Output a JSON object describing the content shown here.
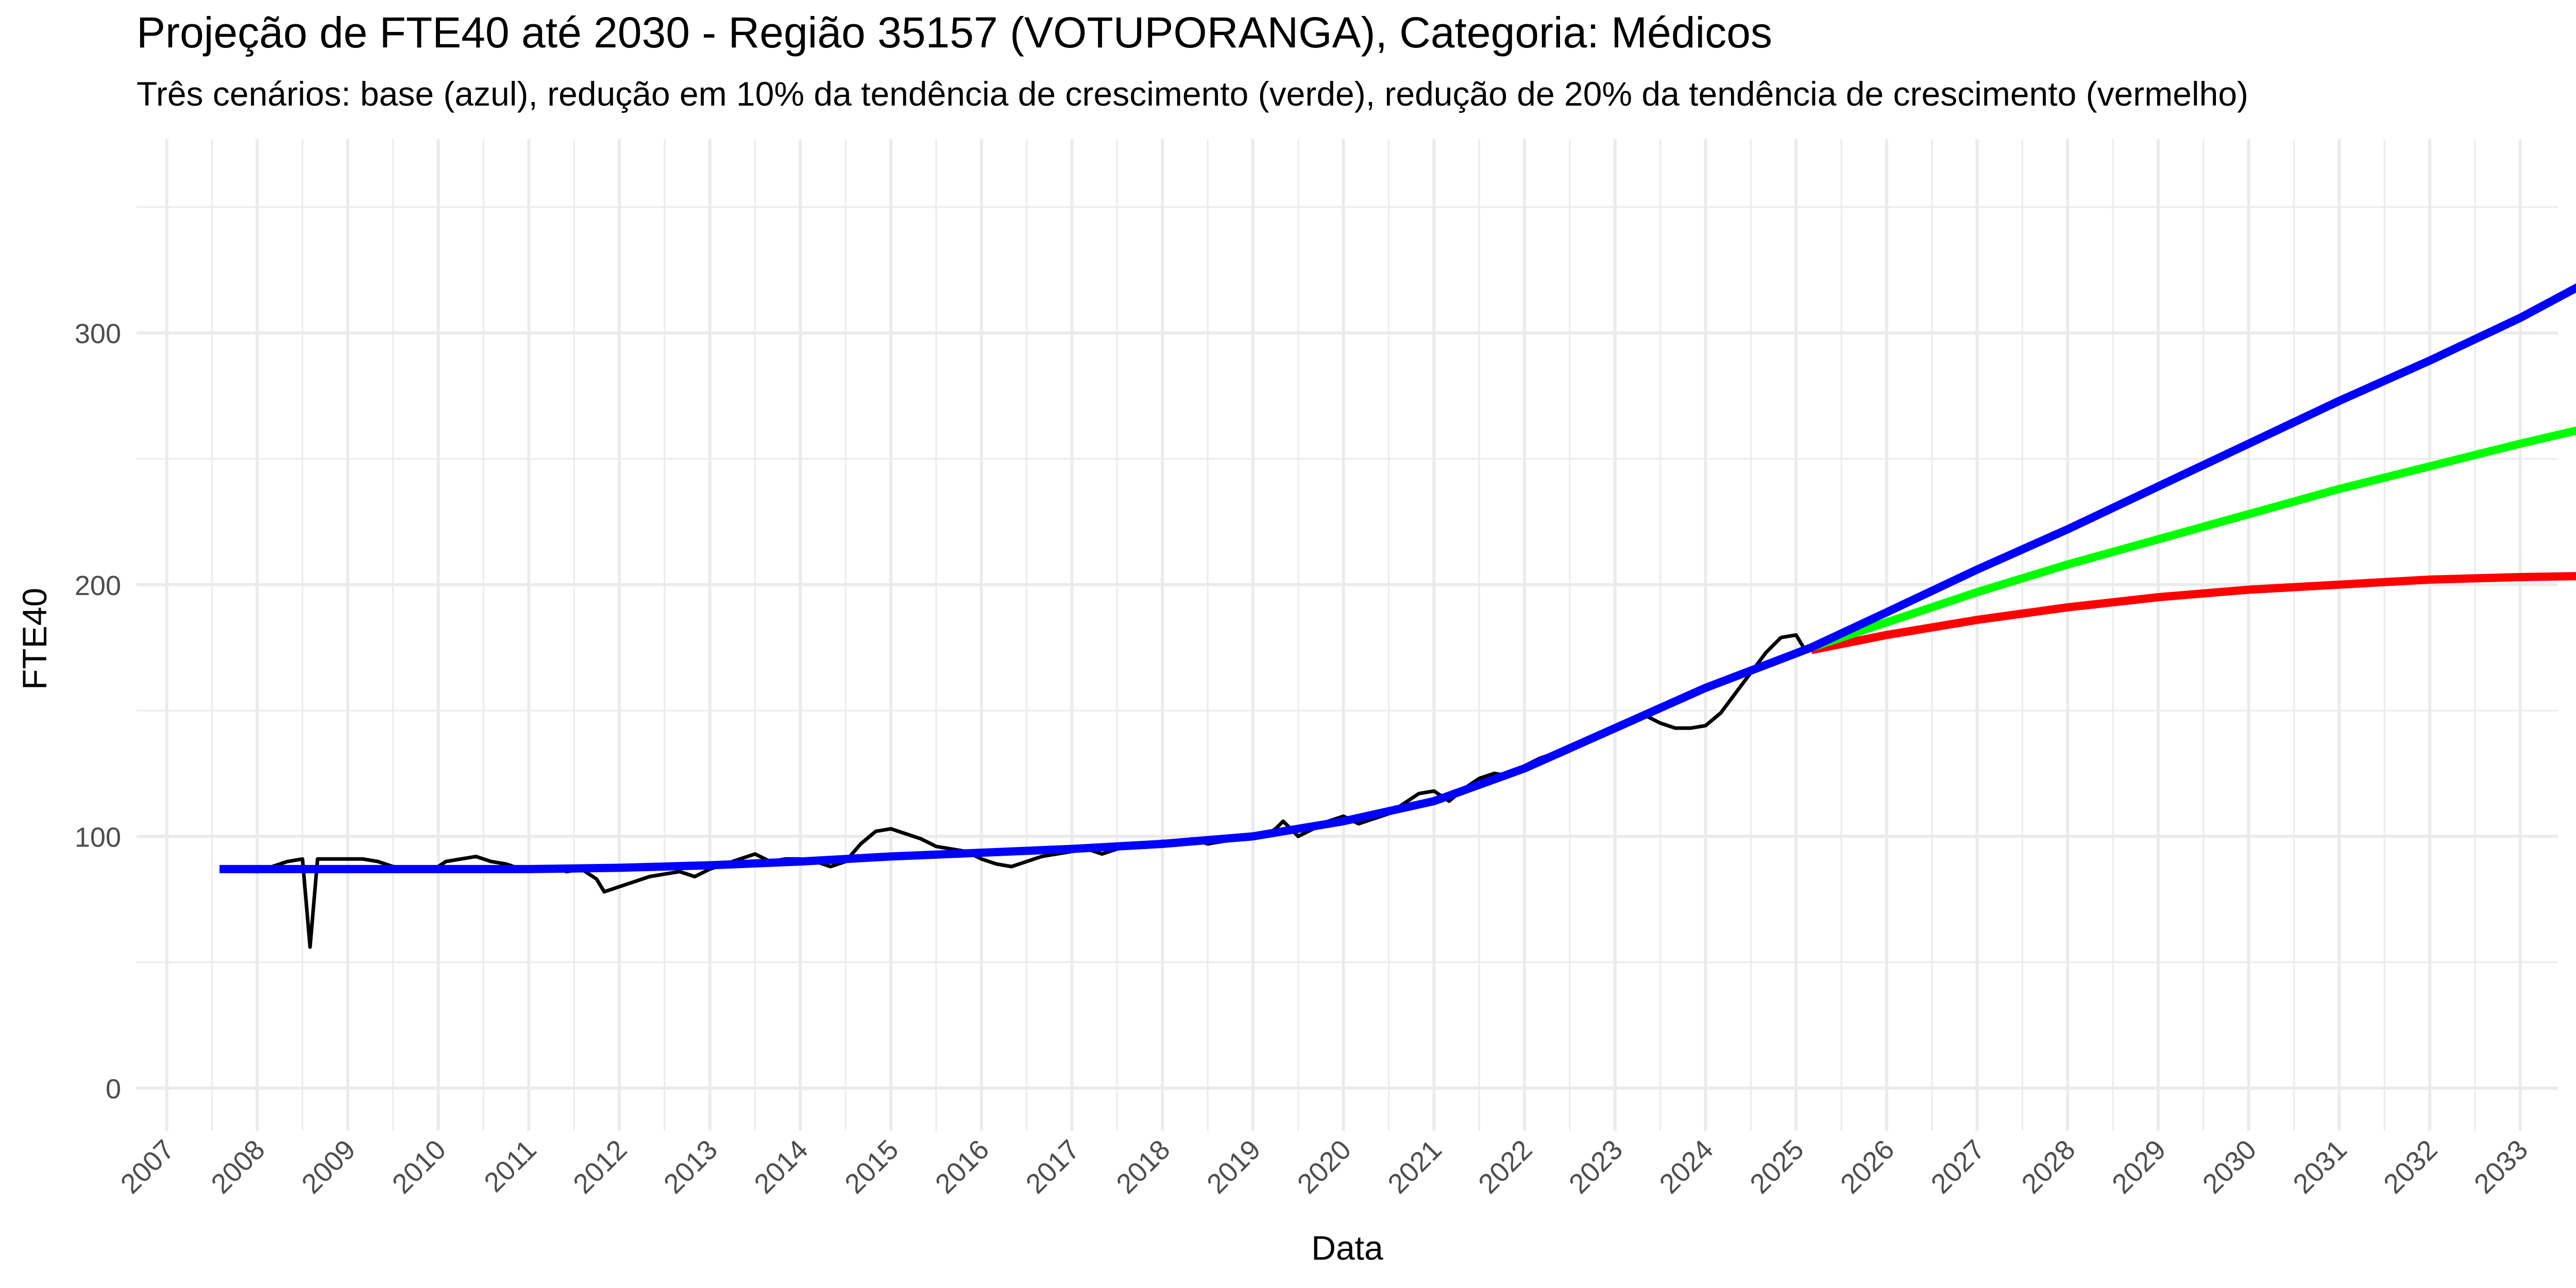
{
  "chart_data": {
    "type": "line",
    "title": "Projeção de FTE40 até 2030 - Região 35157 (VOTUPORANGA), Categoria: Médicos",
    "subtitle": "Três cenários: base (azul), redução em 10% da tendência de crescimento (verde), redução de 20% da tendência de crescimento (vermelho)",
    "xlabel": "Data",
    "ylabel": "FTE40",
    "x_ticks": [
      "2007",
      "2008",
      "2009",
      "2010",
      "2011",
      "2012",
      "2013",
      "2014",
      "2015",
      "2016",
      "2017",
      "2018",
      "2019",
      "2020",
      "2021",
      "2022",
      "2023",
      "2024",
      "2025",
      "2026",
      "2027",
      "2028",
      "2029",
      "2030",
      "2031",
      "2032",
      "2033"
    ],
    "y_ticks": [
      "0",
      "100",
      "200",
      "300"
    ],
    "xlim": [
      "2006-09",
      "2033-06"
    ],
    "ylim": [
      -17,
      377
    ],
    "grid": true,
    "legend": "none",
    "colors": {
      "observed": "#000000",
      "base": "#0000ff",
      "reducao10": "#00ff00",
      "reducao20": "#ff0000",
      "grid": "#ebebeb",
      "text": "#4d4d4d"
    },
    "series": [
      {
        "key": "observed",
        "points": [
          [
            "2007-08",
            87
          ],
          [
            "2008-01",
            86
          ],
          [
            "2008-03",
            88
          ],
          [
            "2008-05",
            90
          ],
          [
            "2008-07",
            91
          ],
          [
            "2008-08",
            56
          ],
          [
            "2008-09",
            91
          ],
          [
            "2008-11",
            91
          ],
          [
            "2009-01",
            91
          ],
          [
            "2009-03",
            91
          ],
          [
            "2009-05",
            90
          ],
          [
            "2009-07",
            88
          ],
          [
            "2009-09",
            87
          ],
          [
            "2009-11",
            87
          ],
          [
            "2010-01",
            88
          ],
          [
            "2010-02",
            90
          ],
          [
            "2010-04",
            91
          ],
          [
            "2010-06",
            92
          ],
          [
            "2010-08",
            90
          ],
          [
            "2010-10",
            89
          ],
          [
            "2010-12",
            87
          ],
          [
            "2011-02",
            87
          ],
          [
            "2011-04",
            88
          ],
          [
            "2011-06",
            86
          ],
          [
            "2011-08",
            87
          ],
          [
            "2011-10",
            83
          ],
          [
            "2011-11",
            78
          ],
          [
            "2012-01",
            80
          ],
          [
            "2012-03",
            82
          ],
          [
            "2012-05",
            84
          ],
          [
            "2012-07",
            85
          ],
          [
            "2012-09",
            86
          ],
          [
            "2012-11",
            84
          ],
          [
            "2013-01",
            87
          ],
          [
            "2013-03",
            89
          ],
          [
            "2013-05",
            91
          ],
          [
            "2013-07",
            93
          ],
          [
            "2013-09",
            90
          ],
          [
            "2013-11",
            91
          ],
          [
            "2014-01",
            91
          ],
          [
            "2014-03",
            90
          ],
          [
            "2014-05",
            88
          ],
          [
            "2014-07",
            90
          ],
          [
            "2014-09",
            97
          ],
          [
            "2014-11",
            102
          ],
          [
            "2015-01",
            103
          ],
          [
            "2015-03",
            101
          ],
          [
            "2015-05",
            99
          ],
          [
            "2015-07",
            96
          ],
          [
            "2015-09",
            95
          ],
          [
            "2015-11",
            94
          ],
          [
            "2016-01",
            91
          ],
          [
            "2016-03",
            89
          ],
          [
            "2016-05",
            88
          ],
          [
            "2016-07",
            90
          ],
          [
            "2016-09",
            92
          ],
          [
            "2016-11",
            93
          ],
          [
            "2017-01",
            94
          ],
          [
            "2017-03",
            95
          ],
          [
            "2017-05",
            93
          ],
          [
            "2017-07",
            95
          ],
          [
            "2017-09",
            96
          ],
          [
            "2017-11",
            97
          ],
          [
            "2018-01",
            98
          ],
          [
            "2018-03",
            98
          ],
          [
            "2018-05",
            99
          ],
          [
            "2018-07",
            97
          ],
          [
            "2018-09",
            98
          ],
          [
            "2018-11",
            99
          ],
          [
            "2019-01",
            100
          ],
          [
            "2019-03",
            101
          ],
          [
            "2019-04",
            103
          ],
          [
            "2019-05",
            106
          ],
          [
            "2019-07",
            100
          ],
          [
            "2019-09",
            103
          ],
          [
            "2019-11",
            106
          ],
          [
            "2020-01",
            108
          ],
          [
            "2020-03",
            105
          ],
          [
            "2020-05",
            107
          ],
          [
            "2020-07",
            109
          ],
          [
            "2020-09",
            113
          ],
          [
            "2020-11",
            117
          ],
          [
            "2021-01",
            118
          ],
          [
            "2021-03",
            114
          ],
          [
            "2021-05",
            119
          ],
          [
            "2021-07",
            123
          ],
          [
            "2021-09",
            125
          ],
          [
            "2021-11",
            124
          ],
          [
            "2022-01",
            128
          ],
          [
            "2022-03",
            131
          ],
          [
            "2022-05",
            133
          ],
          [
            "2022-07",
            135
          ],
          [
            "2022-09",
            138
          ],
          [
            "2022-11",
            141
          ],
          [
            "2023-01",
            143
          ],
          [
            "2023-03",
            146
          ],
          [
            "2023-05",
            148
          ],
          [
            "2023-07",
            145
          ],
          [
            "2023-09",
            143
          ],
          [
            "2023-11",
            143
          ],
          [
            "2024-01",
            144
          ],
          [
            "2024-03",
            149
          ],
          [
            "2024-05",
            157
          ],
          [
            "2024-07",
            165
          ],
          [
            "2024-09",
            173
          ],
          [
            "2024-11",
            179
          ],
          [
            "2025-01",
            180
          ],
          [
            "2025-02",
            175
          ],
          [
            "2025-03",
            174
          ]
        ]
      },
      {
        "key": "base",
        "points": [
          [
            "2007-08",
            87
          ],
          [
            "2009-01",
            87
          ],
          [
            "2011-01",
            87
          ],
          [
            "2012-01",
            87.5
          ],
          [
            "2013-01",
            88.5
          ],
          [
            "2014-01",
            90
          ],
          [
            "2015-01",
            92
          ],
          [
            "2016-01",
            93.5
          ],
          [
            "2017-01",
            95
          ],
          [
            "2018-01",
            97
          ],
          [
            "2019-01",
            100
          ],
          [
            "2020-01",
            106
          ],
          [
            "2021-01",
            114
          ],
          [
            "2022-01",
            127
          ],
          [
            "2023-01",
            143
          ],
          [
            "2024-01",
            159
          ],
          [
            "2025-03",
            175
          ],
          [
            "2026-01",
            189
          ],
          [
            "2027-01",
            206
          ],
          [
            "2028-01",
            222
          ],
          [
            "2029-01",
            239
          ],
          [
            "2030-01",
            256
          ],
          [
            "2031-01",
            273
          ],
          [
            "2032-01",
            289
          ],
          [
            "2033-01",
            306
          ],
          [
            "2033-11",
            322
          ]
        ]
      },
      {
        "key": "reducao10",
        "points": [
          [
            "2025-03",
            175
          ],
          [
            "2026-01",
            185
          ],
          [
            "2027-01",
            197
          ],
          [
            "2028-01",
            208
          ],
          [
            "2029-01",
            218
          ],
          [
            "2030-01",
            228
          ],
          [
            "2031-01",
            238
          ],
          [
            "2032-01",
            247
          ],
          [
            "2033-01",
            256
          ],
          [
            "2033-11",
            263
          ]
        ]
      },
      {
        "key": "reducao20",
        "points": [
          [
            "2025-03",
            174
          ],
          [
            "2026-01",
            180
          ],
          [
            "2027-01",
            186
          ],
          [
            "2028-01",
            191
          ],
          [
            "2029-01",
            195
          ],
          [
            "2030-01",
            198
          ],
          [
            "2031-01",
            200
          ],
          [
            "2032-01",
            202
          ],
          [
            "2033-01",
            203
          ],
          [
            "2033-11",
            203.5
          ]
        ]
      }
    ]
  }
}
